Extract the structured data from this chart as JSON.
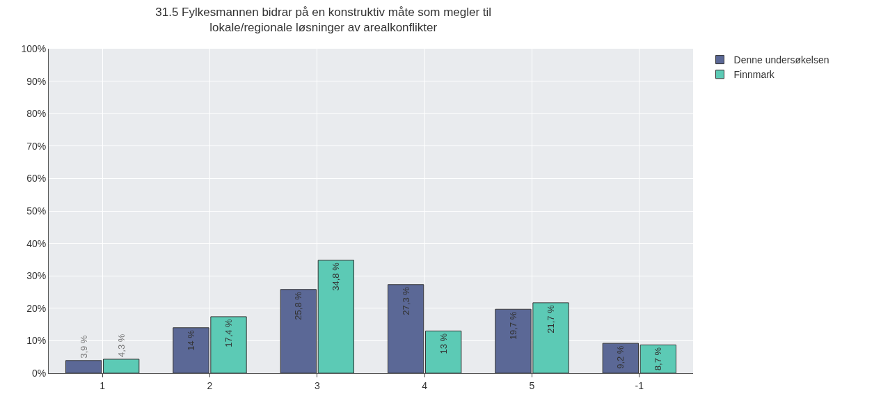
{
  "chart_data": {
    "type": "bar",
    "title": "31.5 Fylkesmannen bidrar på en konstruktiv måte som megler til\nlokale/regionale løsninger av arealkonflikter",
    "categories": [
      "1",
      "2",
      "3",
      "4",
      "5",
      "-1"
    ],
    "series": [
      {
        "name": "Denne undersøkelsen",
        "color": "#5b6896",
        "values": [
          3.9,
          14,
          25.8,
          27.3,
          19.7,
          9.2
        ],
        "value_labels": [
          "3,9 %",
          "14 %",
          "25,8 %",
          "27,3 %",
          "19,7 %",
          "9,2 %"
        ]
      },
      {
        "name": "Finnmark",
        "color": "#5ccab5",
        "values": [
          4.3,
          17.4,
          34.8,
          13,
          21.7,
          8.7
        ],
        "value_labels": [
          "4,3 %",
          "17,4 %",
          "34,8 %",
          "13 %",
          "21,7 %",
          "8,7 %"
        ]
      }
    ],
    "ylim": [
      0,
      100
    ],
    "yticks": [
      {
        "value": 0,
        "label": "0%"
      },
      {
        "value": 10,
        "label": "10%"
      },
      {
        "value": 20,
        "label": "20%"
      },
      {
        "value": 30,
        "label": "30%"
      },
      {
        "value": 40,
        "label": "40%"
      },
      {
        "value": 50,
        "label": "50%"
      },
      {
        "value": 60,
        "label": "60%"
      },
      {
        "value": 70,
        "label": "70%"
      },
      {
        "value": 80,
        "label": "80%"
      },
      {
        "value": 90,
        "label": "90%"
      },
      {
        "value": 100,
        "label": "100%"
      }
    ],
    "grid": true,
    "legend": "top right"
  }
}
